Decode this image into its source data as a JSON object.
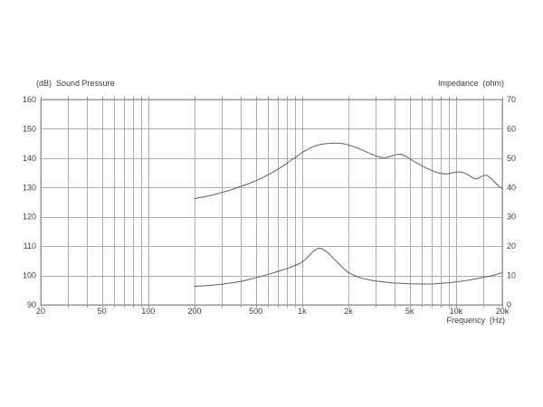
{
  "colors": {
    "background": "#ffffff",
    "grid": "#aeaeae",
    "border": "#8f8f8f",
    "curve": "#5f5f5f",
    "text": "#3c3c3c"
  },
  "chart_data": {
    "type": "line",
    "title": "",
    "left_axis_title": "(dB)  Sound Pressure",
    "right_axis_title": "Impedance  (ohm)",
    "xlabel": "Frequency  (Hz)",
    "x_scale": "log",
    "xlim": [
      20,
      20000
    ],
    "ylim_left": [
      90,
      160
    ],
    "ylim_right": [
      0,
      70
    ],
    "grid": true,
    "legend_position": "none",
    "left_ticks": [
      160,
      150,
      140,
      130,
      120,
      110,
      100,
      90
    ],
    "right_ticks": [
      70,
      60,
      50,
      40,
      30,
      20,
      10,
      0
    ],
    "x_tick_labels": [
      {
        "f": 20,
        "label": "20"
      },
      {
        "f": 50,
        "label": "50"
      },
      {
        "f": 100,
        "label": "100"
      },
      {
        "f": 200,
        "label": "200"
      },
      {
        "f": 500,
        "label": "500"
      },
      {
        "f": 1000,
        "label": "1k"
      },
      {
        "f": 2000,
        "label": "2k"
      },
      {
        "f": 5000,
        "label": "5k"
      },
      {
        "f": 10000,
        "label": "10k"
      },
      {
        "f": 20000,
        "label": "20k"
      }
    ],
    "x_gridlines": [
      20,
      30,
      40,
      50,
      60,
      70,
      80,
      90,
      100,
      200,
      300,
      400,
      500,
      600,
      700,
      800,
      900,
      1000,
      2000,
      3000,
      4000,
      5000,
      6000,
      7000,
      8000,
      9000,
      10000,
      15000,
      20000
    ],
    "series": [
      {
        "name": "Sound Pressure (dB)",
        "axis": "left",
        "points": [
          [
            200,
            126.2
          ],
          [
            220,
            126.6
          ],
          [
            250,
            127.2
          ],
          [
            280,
            127.8
          ],
          [
            300,
            128.3
          ],
          [
            350,
            129.3
          ],
          [
            400,
            130.4
          ],
          [
            450,
            131.3
          ],
          [
            500,
            132.3
          ],
          [
            550,
            133.3
          ],
          [
            600,
            134.3
          ],
          [
            650,
            135.3
          ],
          [
            700,
            136.3
          ],
          [
            750,
            137.3
          ],
          [
            800,
            138.3
          ],
          [
            850,
            139.3
          ],
          [
            900,
            140.1
          ],
          [
            950,
            141.0
          ],
          [
            1000,
            141.9
          ],
          [
            1100,
            143.2
          ],
          [
            1200,
            144.1
          ],
          [
            1300,
            144.6
          ],
          [
            1400,
            144.9
          ],
          [
            1500,
            145.0
          ],
          [
            1600,
            145.1
          ],
          [
            1700,
            145.1
          ],
          [
            1800,
            145.0
          ],
          [
            1900,
            144.8
          ],
          [
            2000,
            144.5
          ],
          [
            2200,
            143.8
          ],
          [
            2400,
            143.0
          ],
          [
            2600,
            142.2
          ],
          [
            2800,
            141.4
          ],
          [
            3000,
            140.8
          ],
          [
            3200,
            140.3
          ],
          [
            3400,
            140.1
          ],
          [
            3600,
            140.3
          ],
          [
            3800,
            140.7
          ],
          [
            4000,
            141.1
          ],
          [
            4200,
            141.4
          ],
          [
            4400,
            141.3
          ],
          [
            4600,
            141.0
          ],
          [
            4800,
            140.4
          ],
          [
            5000,
            139.8
          ],
          [
            5500,
            138.5
          ],
          [
            6000,
            137.4
          ],
          [
            6500,
            136.5
          ],
          [
            7000,
            135.7
          ],
          [
            7500,
            135.1
          ],
          [
            8000,
            134.8
          ],
          [
            8500,
            134.6
          ],
          [
            9000,
            134.7
          ],
          [
            9500,
            135.0
          ],
          [
            10000,
            135.2
          ],
          [
            10500,
            135.3
          ],
          [
            11000,
            135.2
          ],
          [
            11500,
            134.8
          ],
          [
            12000,
            134.3
          ],
          [
            12500,
            133.7
          ],
          [
            13000,
            133.1
          ],
          [
            13500,
            132.9
          ],
          [
            14000,
            133.2
          ],
          [
            14500,
            133.6
          ],
          [
            15000,
            134.0
          ],
          [
            15500,
            134.2
          ],
          [
            16000,
            134.1
          ],
          [
            16500,
            133.6
          ],
          [
            17000,
            133.0
          ],
          [
            17500,
            132.3
          ],
          [
            18000,
            131.6
          ],
          [
            18500,
            131.0
          ],
          [
            19000,
            130.4
          ],
          [
            19500,
            130.0
          ],
          [
            20000,
            129.6
          ]
        ]
      },
      {
        "name": "Impedance (ohm)",
        "axis": "right",
        "points": [
          [
            200,
            6.3
          ],
          [
            250,
            6.6
          ],
          [
            300,
            7.0
          ],
          [
            350,
            7.5
          ],
          [
            400,
            8.0
          ],
          [
            450,
            8.6
          ],
          [
            500,
            9.2
          ],
          [
            550,
            9.8
          ],
          [
            600,
            10.4
          ],
          [
            650,
            10.9
          ],
          [
            700,
            11.4
          ],
          [
            750,
            11.9
          ],
          [
            800,
            12.4
          ],
          [
            850,
            12.9
          ],
          [
            900,
            13.4
          ],
          [
            950,
            13.9
          ],
          [
            1000,
            14.6
          ],
          [
            1050,
            15.5
          ],
          [
            1100,
            16.5
          ],
          [
            1150,
            17.6
          ],
          [
            1200,
            18.5
          ],
          [
            1250,
            19.1
          ],
          [
            1300,
            19.3
          ],
          [
            1350,
            19.1
          ],
          [
            1400,
            18.6
          ],
          [
            1500,
            17.3
          ],
          [
            1600,
            15.8
          ],
          [
            1700,
            14.4
          ],
          [
            1800,
            13.1
          ],
          [
            1900,
            11.9
          ],
          [
            2000,
            11.0
          ],
          [
            2200,
            9.9
          ],
          [
            2400,
            9.2
          ],
          [
            2600,
            8.7
          ],
          [
            2800,
            8.4
          ],
          [
            3000,
            8.1
          ],
          [
            3500,
            7.7
          ],
          [
            4000,
            7.4
          ],
          [
            4500,
            7.3
          ],
          [
            5000,
            7.2
          ],
          [
            6000,
            7.1
          ],
          [
            7000,
            7.1
          ],
          [
            8000,
            7.3
          ],
          [
            9000,
            7.5
          ],
          [
            10000,
            7.8
          ],
          [
            11000,
            8.1
          ],
          [
            12000,
            8.4
          ],
          [
            13000,
            8.7
          ],
          [
            14000,
            9.0
          ],
          [
            15000,
            9.3
          ],
          [
            16000,
            9.6
          ],
          [
            17000,
            9.9
          ],
          [
            18000,
            10.2
          ],
          [
            19000,
            10.6
          ],
          [
            20000,
            11.0
          ]
        ]
      }
    ]
  }
}
